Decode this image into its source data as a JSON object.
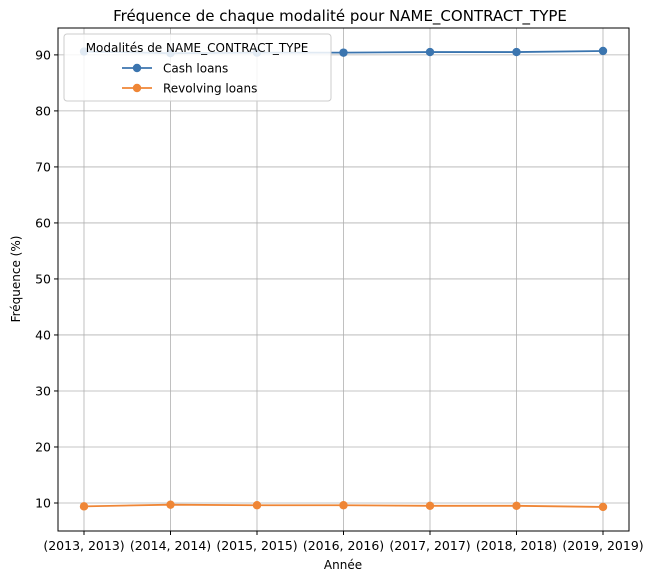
{
  "chart_data": {
    "type": "line",
    "title": "Fréquence de chaque modalité pour NAME_CONTRACT_TYPE",
    "xlabel": "Année",
    "ylabel": "Fréquence (%)",
    "categories": [
      "(2013, 2013)",
      "(2014, 2014)",
      "(2015, 2015)",
      "(2016, 2016)",
      "(2017, 2017)",
      "(2018, 2018)",
      "(2019, 2019)"
    ],
    "yticks": [
      10,
      20,
      30,
      40,
      50,
      60,
      70,
      80,
      90
    ],
    "ylim": [
      5,
      94.8
    ],
    "grid": true,
    "legend": {
      "title": "Modalités de NAME_CONTRACT_TYPE",
      "placement": "top-left"
    },
    "series": [
      {
        "name": "Cash loans",
        "color": "#3b75af",
        "values": [
          90.6,
          90.3,
          90.4,
          90.4,
          90.5,
          90.5,
          90.7
        ]
      },
      {
        "name": "Revolving loans",
        "color": "#ef8636",
        "values": [
          9.4,
          9.7,
          9.6,
          9.6,
          9.5,
          9.5,
          9.3
        ]
      }
    ]
  }
}
